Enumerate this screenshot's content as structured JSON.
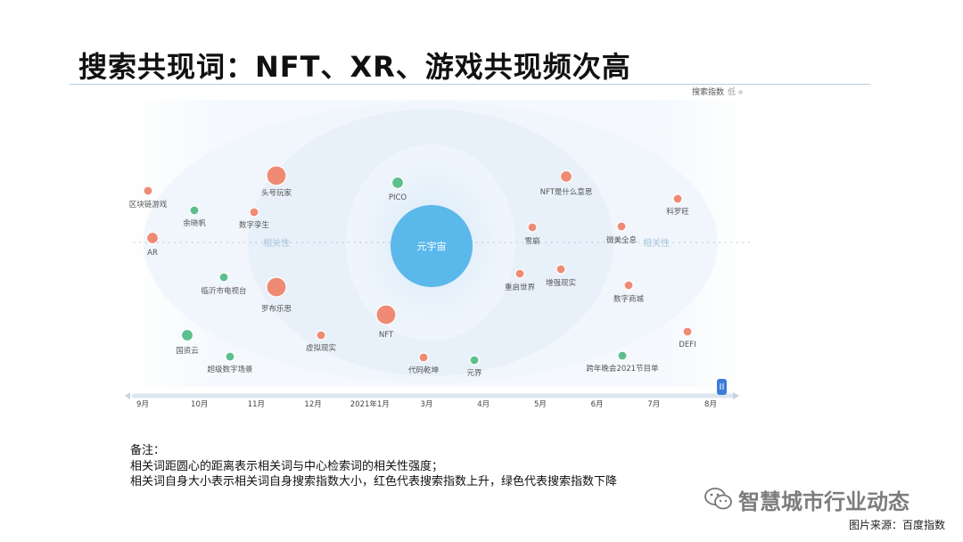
{
  "title": "搜索共现词：NFT、XR、游戏共现频次高",
  "legend": {
    "label": "搜索指数",
    "low": "低"
  },
  "chart_data": {
    "type": "scatter",
    "center": "元宇宙",
    "axis_label": "相关性",
    "timeline": [
      "9月",
      "10月",
      "11月",
      "12月",
      "2021年1月",
      "3月",
      "4月",
      "5月",
      "6月",
      "7月",
      "8月"
    ],
    "timeline_selected": "8月",
    "color_meaning": {
      "up": "#ef8b74",
      "down": "#5cbf8d"
    },
    "points": [
      {
        "label": "区块链游戏",
        "trend": "up",
        "size": "small"
      },
      {
        "label": "余晓帆",
        "trend": "down",
        "size": "small"
      },
      {
        "label": "头号玩家",
        "trend": "up",
        "size": "large"
      },
      {
        "label": "数字孪生",
        "trend": "up",
        "size": "small"
      },
      {
        "label": "AR",
        "trend": "up",
        "size": "medium"
      },
      {
        "label": "PICO",
        "trend": "down",
        "size": "medium"
      },
      {
        "label": "NFT是什么意思",
        "trend": "up",
        "size": "medium"
      },
      {
        "label": "科罗旺",
        "trend": "up",
        "size": "small"
      },
      {
        "label": "雪崩",
        "trend": "up",
        "size": "small"
      },
      {
        "label": "微美全息",
        "trend": "up",
        "size": "small"
      },
      {
        "label": "临沂市电视台",
        "trend": "down",
        "size": "small"
      },
      {
        "label": "罗布乐思",
        "trend": "up",
        "size": "large"
      },
      {
        "label": "重启世界",
        "trend": "up",
        "size": "small"
      },
      {
        "label": "增强现实",
        "trend": "up",
        "size": "small"
      },
      {
        "label": "数字商城",
        "trend": "up",
        "size": "small"
      },
      {
        "label": "NFT",
        "trend": "up",
        "size": "large"
      },
      {
        "label": "虚拟现实",
        "trend": "up",
        "size": "small"
      },
      {
        "label": "国资云",
        "trend": "down",
        "size": "medium"
      },
      {
        "label": "超级数字场景",
        "trend": "down",
        "size": "small"
      },
      {
        "label": "代码乾坤",
        "trend": "up",
        "size": "small"
      },
      {
        "label": "元界",
        "trend": "down",
        "size": "small"
      },
      {
        "label": "跨年晚会2021节目单",
        "trend": "down",
        "size": "small"
      },
      {
        "label": "DEFI",
        "trend": "up",
        "size": "small"
      }
    ]
  },
  "notes": [
    "备注：",
    "相关词距圆心的距离表示相关词与中心检索词的相关性强度；",
    "相关词自身大小表示相关词自身搜索指数大小，红色代表搜索指数上升，绿色代表搜索指数下降"
  ],
  "watermark": "智慧城市行业动态",
  "source": "图片来源：百度指数"
}
